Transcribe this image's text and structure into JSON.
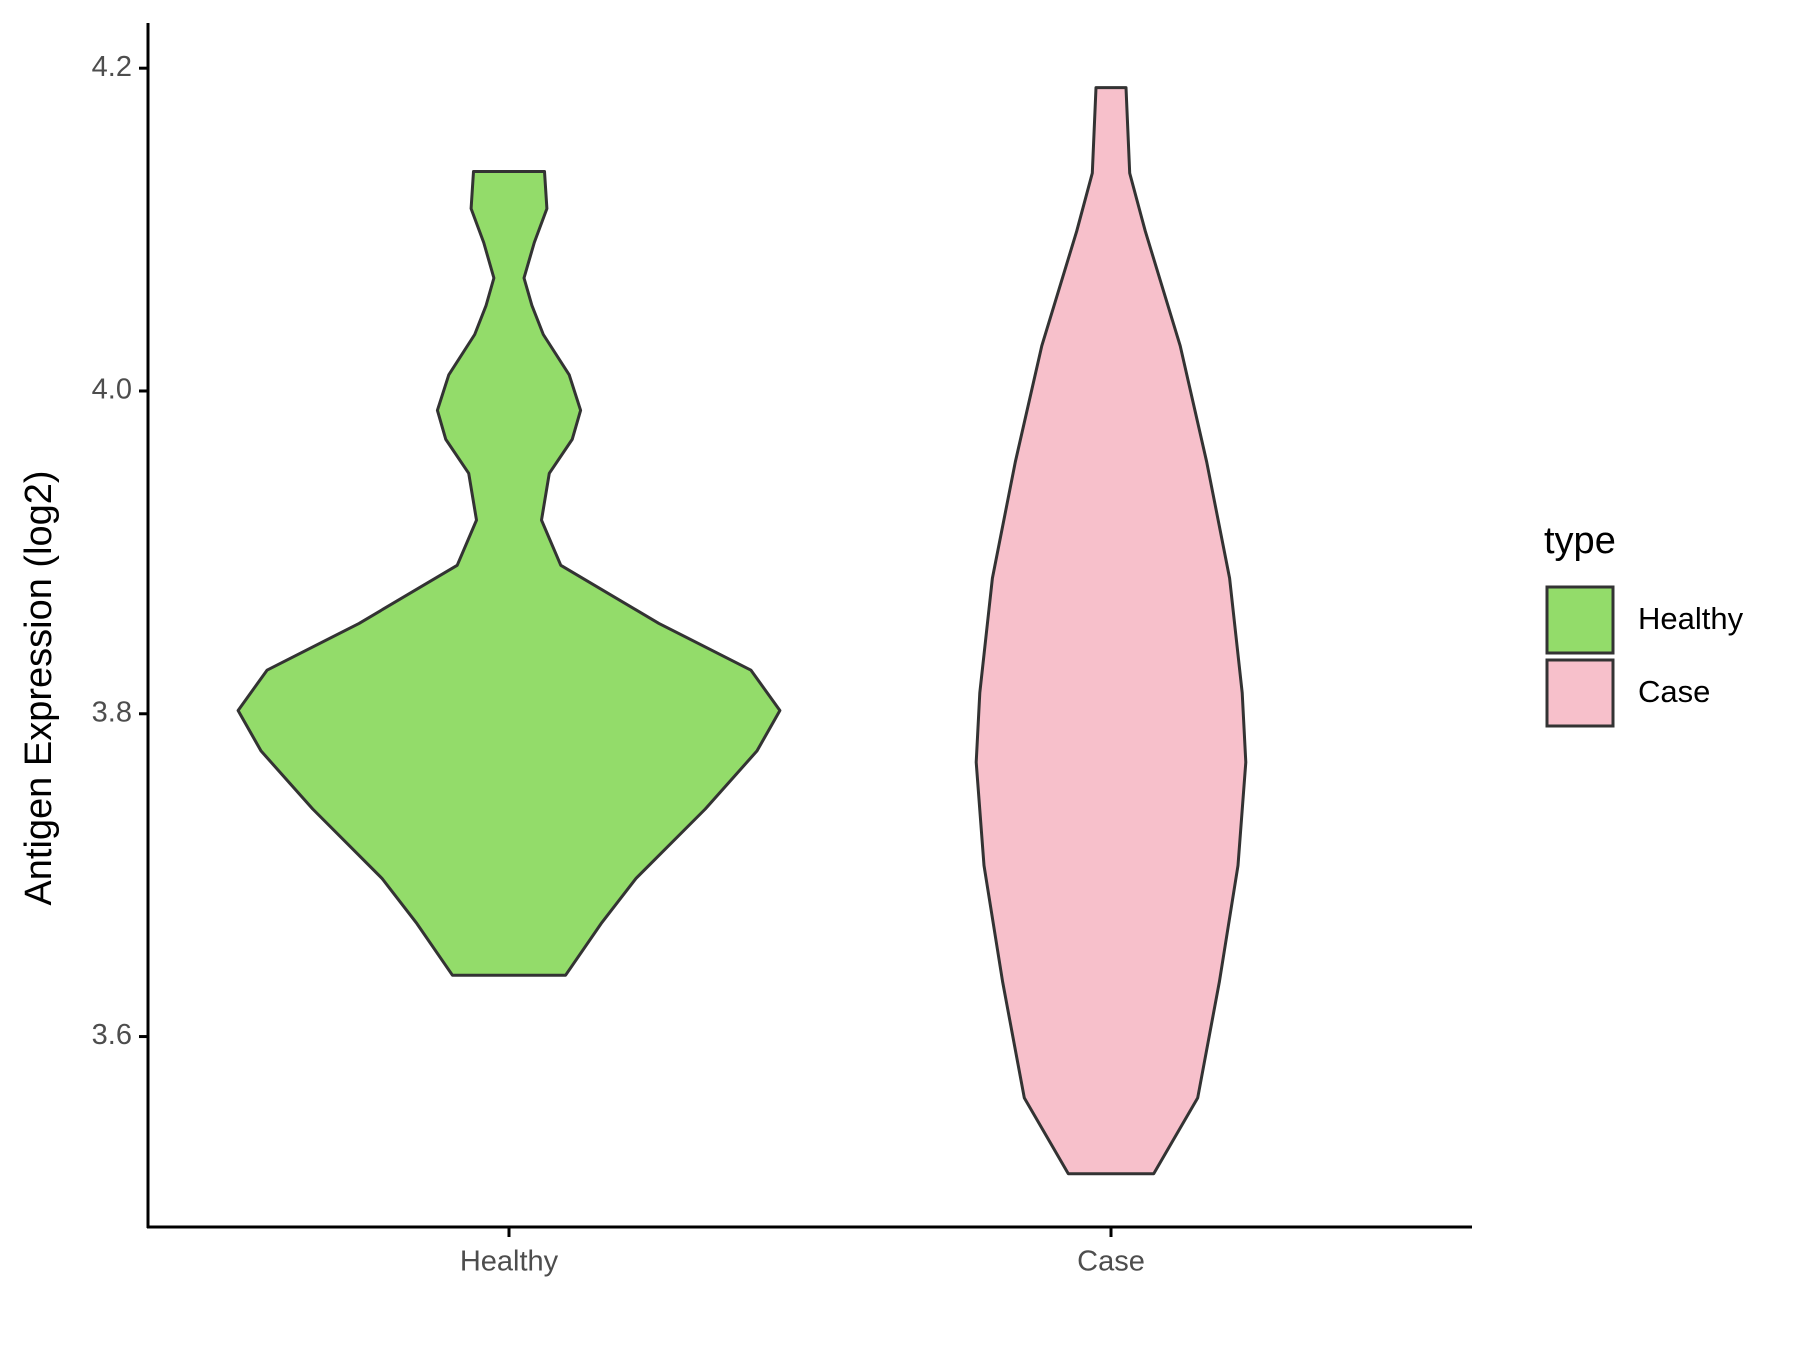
{
  "chart_data": {
    "type": "violin",
    "y_label": "Antigen Expression (log2)",
    "categories": [
      "Healthy",
      "Case"
    ],
    "legend_title": "type",
    "ylim": [
      3.482,
      4.228
    ],
    "yticks": [
      {
        "value": 3.6,
        "label": "3.6"
      },
      {
        "value": 3.8,
        "label": "3.8"
      },
      {
        "value": 4.0,
        "label": "4.0"
      },
      {
        "value": 4.2,
        "label": "4.2"
      }
    ],
    "series": [
      {
        "name": "Healthy",
        "color": "#93dc6a",
        "y": [
          4.136,
          4.113,
          4.092,
          4.07,
          4.053,
          4.035,
          4.01,
          3.988,
          3.97,
          3.949,
          3.92,
          3.892,
          3.856,
          3.827,
          3.802,
          3.777,
          3.741,
          3.698,
          3.67,
          3.638
        ],
        "half_width": [
          0.059,
          0.063,
          0.042,
          0.025,
          0.038,
          0.057,
          0.1,
          0.119,
          0.105,
          0.067,
          0.054,
          0.086,
          0.249,
          0.402,
          0.45,
          0.412,
          0.326,
          0.211,
          0.153,
          0.094
        ]
      },
      {
        "name": "Case",
        "color": "#f7c0cb",
        "y": [
          4.188,
          4.135,
          4.099,
          4.028,
          3.956,
          3.884,
          3.813,
          3.77,
          3.706,
          3.634,
          3.562,
          3.515
        ],
        "half_width": [
          0.025,
          0.031,
          0.057,
          0.115,
          0.159,
          0.197,
          0.218,
          0.224,
          0.211,
          0.18,
          0.144,
          0.071
        ]
      }
    ]
  }
}
